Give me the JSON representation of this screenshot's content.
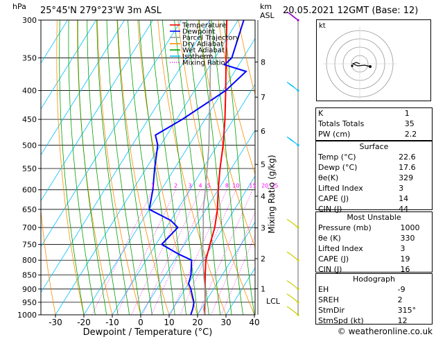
{
  "header": {
    "p_unit": "hPa",
    "location": "25°45'N  279°23'W  3m  ASL",
    "km_unit": "km",
    "asl": "ASL",
    "datetime": "20.05.2021  12GMT  (Base: 12)"
  },
  "legend": [
    "Temperature",
    "Dewpoint",
    "Parcel Trajectory",
    "Dry Adiabat",
    "Wet Adiabat",
    "Isotherm",
    "Mixing Ratio"
  ],
  "legend_colors": [
    "#ff0000",
    "#0000ff",
    "#999999",
    "#ff8c00",
    "#00a000",
    "#00bfff",
    "#ff00ff"
  ],
  "axis": {
    "xlabel": "Dewpoint / Temperature (°C)",
    "mixing_label": "Mixing Ratio (g/kg)",
    "lcl": "LCL",
    "footer": "© weatheronline.co.uk",
    "pressure_ticks": [
      "300",
      "350",
      "400",
      "450",
      "500",
      "550",
      "600",
      "650",
      "700",
      "750",
      "800",
      "850",
      "900",
      "950",
      "1000"
    ],
    "temp_ticks": [
      "-30",
      "-20",
      "-10",
      "0",
      "10",
      "20",
      "30",
      "40"
    ],
    "km_ticks": [
      "8",
      "7",
      "6",
      "5",
      "4",
      "3",
      "2",
      "1"
    ],
    "mixing_ticks": [
      "1",
      "2",
      "3",
      "4",
      "5",
      "8",
      "10",
      "15",
      "20",
      "25"
    ]
  },
  "chart_data": {
    "type": "line",
    "title": "",
    "xlabel": "Dewpoint / Temperature (°C)",
    "ylabel": "hPa",
    "xlim": [
      -35,
      40
    ],
    "ylim": [
      1000,
      300
    ],
    "series": [
      {
        "name": "Temperature",
        "color": "#ff0000",
        "points": [
          [
            1000,
            22.6
          ],
          [
            975,
            21
          ],
          [
            950,
            20
          ],
          [
            925,
            18.5
          ],
          [
            900,
            17
          ],
          [
            850,
            14
          ],
          [
            800,
            11
          ],
          [
            750,
            9
          ],
          [
            700,
            7
          ],
          [
            650,
            4
          ],
          [
            600,
            0
          ],
          [
            550,
            -4
          ],
          [
            500,
            -8
          ],
          [
            450,
            -13
          ],
          [
            400,
            -19
          ],
          [
            350,
            -26
          ],
          [
            300,
            -34
          ]
        ]
      },
      {
        "name": "Dewpoint",
        "color": "#0000ff",
        "points": [
          [
            1000,
            17.6
          ],
          [
            975,
            17
          ],
          [
            950,
            16
          ],
          [
            925,
            14
          ],
          [
            900,
            12
          ],
          [
            880,
            10
          ],
          [
            850,
            9
          ],
          [
            800,
            6
          ],
          [
            780,
            0
          ],
          [
            750,
            -8
          ],
          [
            700,
            -6
          ],
          [
            680,
            -10
          ],
          [
            650,
            -20
          ],
          [
            600,
            -23
          ],
          [
            550,
            -27
          ],
          [
            500,
            -31
          ],
          [
            480,
            -34
          ],
          [
            450,
            -28
          ],
          [
            400,
            -19
          ],
          [
            370,
            -16
          ],
          [
            360,
            -25
          ],
          [
            350,
            -24
          ],
          [
            300,
            -28
          ]
        ]
      },
      {
        "name": "Parcel Trajectory",
        "color": "#999999",
        "points": [
          [
            1000,
            22.6
          ],
          [
            950,
            20
          ],
          [
            900,
            17
          ],
          [
            850,
            13.5
          ],
          [
            800,
            10
          ],
          [
            750,
            6.5
          ],
          [
            700,
            3
          ],
          [
            650,
            -1
          ],
          [
            600,
            -4.5
          ],
          [
            550,
            -8.5
          ],
          [
            500,
            -13
          ],
          [
            450,
            -18.5
          ],
          [
            400,
            -24.5
          ],
          [
            350,
            -31.5
          ],
          [
            300,
            -40
          ]
        ]
      }
    ],
    "wind_barbs": [
      {
        "p": 1000,
        "speed_kt": 5
      },
      {
        "p": 950,
        "speed_kt": 10
      },
      {
        "p": 900,
        "speed_kt": 10
      },
      {
        "p": 800,
        "speed_kt": 10
      },
      {
        "p": 700,
        "speed_kt": 10
      },
      {
        "p": 500,
        "speed_kt": 25
      },
      {
        "p": 400,
        "speed_kt": 30
      },
      {
        "p": 300,
        "speed_kt": 45
      }
    ],
    "hodograph_unit": "kt"
  },
  "indices": {
    "basic": [
      {
        "label": "K",
        "value": "1"
      },
      {
        "label": "Totals Totals",
        "value": "35"
      },
      {
        "label": "PW (cm)",
        "value": "2.2"
      }
    ],
    "surface_title": "Surface",
    "surface": [
      {
        "label": "Temp (°C)",
        "value": "22.6"
      },
      {
        "label": "Dewp (°C)",
        "value": "17.6"
      },
      {
        "label": "θe(K)",
        "value": "329"
      },
      {
        "label": "Lifted Index",
        "value": "3"
      },
      {
        "label": "CAPE (J)",
        "value": "14"
      },
      {
        "label": "CIN (J)",
        "value": "44"
      }
    ],
    "unstable_title": "Most Unstable",
    "unstable": [
      {
        "label": "Pressure (mb)",
        "value": "1000"
      },
      {
        "label": "θe (K)",
        "value": "330"
      },
      {
        "label": "Lifted Index",
        "value": "3"
      },
      {
        "label": "CAPE (J)",
        "value": "19"
      },
      {
        "label": "CIN (J)",
        "value": "16"
      }
    ],
    "hodo_title": "Hodograph",
    "hodo": [
      {
        "label": "EH",
        "value": "-9"
      },
      {
        "label": "SREH",
        "value": "2"
      },
      {
        "label": "StmDir",
        "value": "315°"
      },
      {
        "label": "StmSpd (kt)",
        "value": "12"
      }
    ]
  }
}
